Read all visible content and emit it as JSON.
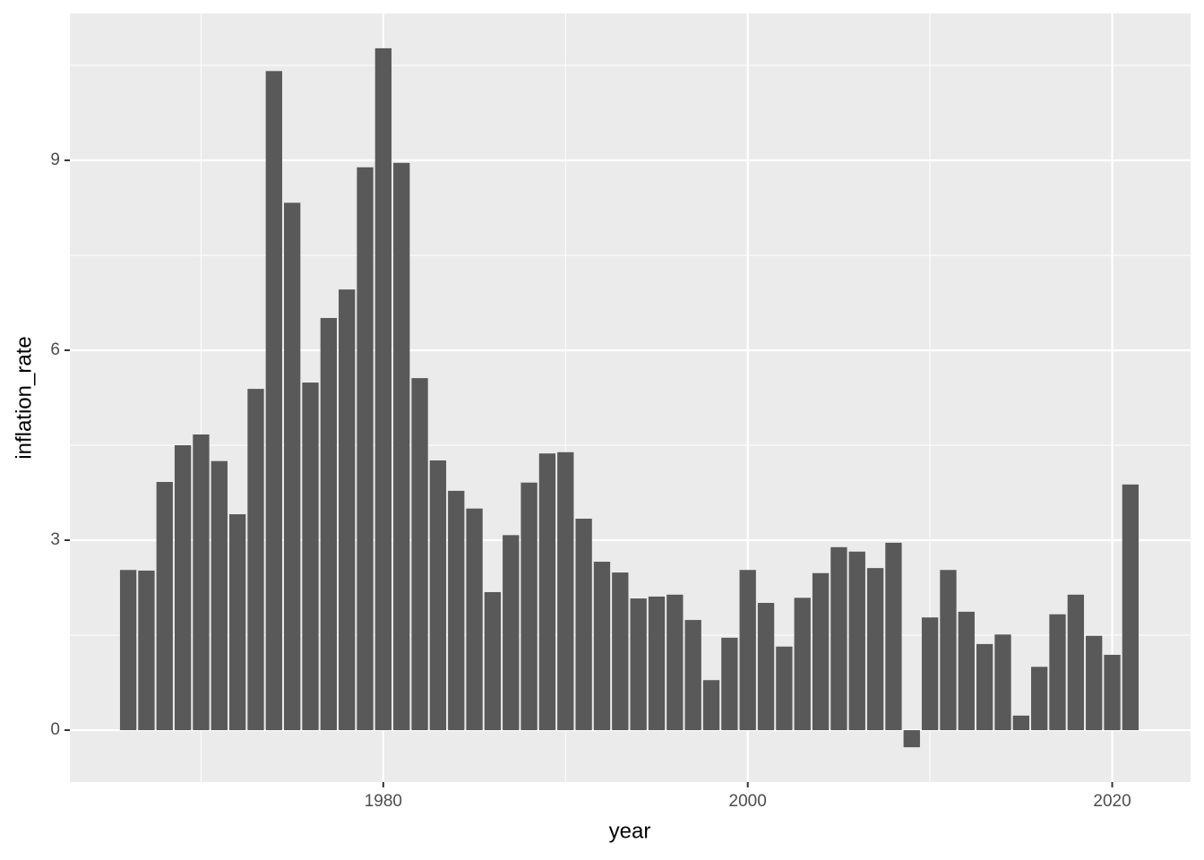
{
  "chart_data": {
    "type": "bar",
    "x_label": "year",
    "y_label": "inflation_rate",
    "x": [
      1966,
      1967,
      1968,
      1969,
      1970,
      1971,
      1972,
      1973,
      1974,
      1975,
      1976,
      1977,
      1978,
      1979,
      1980,
      1981,
      1982,
      1983,
      1984,
      1985,
      1986,
      1987,
      1988,
      1989,
      1990,
      1991,
      1992,
      1993,
      1994,
      1995,
      1996,
      1997,
      1998,
      1999,
      2000,
      2001,
      2002,
      2003,
      2004,
      2005,
      2006,
      2007,
      2008,
      2009,
      2010,
      2011,
      2012,
      2013,
      2014,
      2015,
      2016,
      2017,
      2018,
      2019,
      2020,
      2021
    ],
    "values": [
      2.53,
      2.52,
      3.92,
      4.5,
      4.67,
      4.25,
      3.41,
      5.39,
      10.41,
      8.33,
      5.49,
      6.51,
      6.96,
      8.89,
      10.77,
      8.96,
      5.56,
      4.26,
      3.78,
      3.5,
      2.18,
      3.08,
      3.91,
      4.37,
      4.39,
      3.34,
      2.66,
      2.49,
      2.08,
      2.11,
      2.14,
      1.74,
      0.79,
      1.46,
      2.53,
      2.01,
      1.32,
      2.09,
      2.48,
      2.89,
      2.82,
      2.56,
      2.96,
      -0.27,
      1.78,
      2.53,
      1.87,
      1.36,
      1.51,
      0.23,
      1.0,
      1.83,
      2.14,
      1.49,
      1.19,
      3.88
    ],
    "color": "#595959",
    "xlim": [
      1962.8,
      2024.3
    ],
    "xticks": [
      1980,
      2000,
      2020
    ],
    "ylim": [
      -0.82,
      11.32
    ],
    "yticks": [
      0,
      3,
      6,
      9
    ],
    "grid": true
  }
}
